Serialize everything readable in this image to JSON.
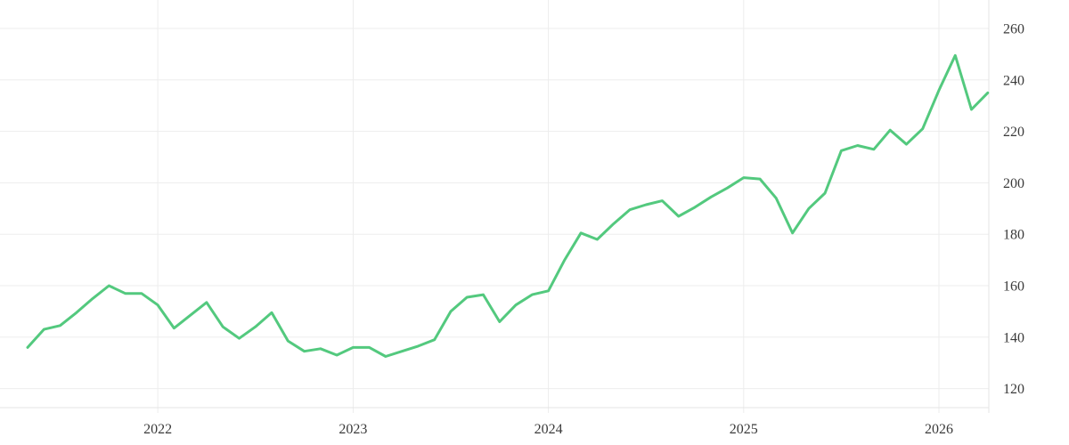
{
  "style": {
    "line_color": "#53c97e",
    "grid_color": "#ededed",
    "axis_color": "#e4e4e4",
    "tick_text_color": "#3a3a3a",
    "background_color": "#ffffff"
  },
  "chart_data": {
    "type": "line",
    "title": "",
    "xlabel": "",
    "ylabel": "",
    "grid": true,
    "legend": false,
    "y_axis_side": "right",
    "x_tick_labels": [
      "2022",
      "2023",
      "2024",
      "2025",
      "2026"
    ],
    "y_tick_labels": [
      "120",
      "140",
      "160",
      "180",
      "200",
      "220",
      "240",
      "260"
    ],
    "y_ticks": [
      120,
      140,
      160,
      180,
      200,
      220,
      240,
      260
    ],
    "ylim": [
      113,
      271
    ],
    "x": [
      "2021-05",
      "2021-06",
      "2021-07",
      "2021-08",
      "2021-09",
      "2021-10",
      "2021-11",
      "2021-12",
      "2022-01",
      "2022-02",
      "2022-03",
      "2022-04",
      "2022-05",
      "2022-06",
      "2022-07",
      "2022-08",
      "2022-09",
      "2022-10",
      "2022-11",
      "2022-12",
      "2023-01",
      "2023-02",
      "2023-03",
      "2023-04",
      "2023-05",
      "2023-06",
      "2023-07",
      "2023-08",
      "2023-09",
      "2023-10",
      "2023-11",
      "2023-12",
      "2024-01",
      "2024-02",
      "2024-03",
      "2024-04",
      "2024-05",
      "2024-06",
      "2024-07",
      "2024-08",
      "2024-09",
      "2024-10",
      "2024-11",
      "2024-12",
      "2025-01",
      "2025-02",
      "2025-03",
      "2025-04",
      "2025-05",
      "2025-06",
      "2025-07",
      "2025-08",
      "2025-09",
      "2025-10",
      "2025-11",
      "2025-12",
      "2026-01",
      "2026-02",
      "2026-03",
      "2026-04"
    ],
    "values": [
      136,
      143,
      144.5,
      149.5,
      155,
      160,
      157,
      157,
      152.5,
      143.5,
      148.5,
      153.5,
      144,
      139.5,
      144,
      149.5,
      138.5,
      134.5,
      135.5,
      133,
      136,
      136,
      132.5,
      134.5,
      136.5,
      139,
      150,
      155.5,
      156.5,
      146,
      152.5,
      156.5,
      158,
      170,
      180.5,
      178,
      184,
      189.5,
      191.5,
      193,
      187,
      190.5,
      194.5,
      198,
      202,
      201.5,
      194,
      180.5,
      190,
      196,
      212.5,
      214.5,
      213,
      220.5,
      215,
      221,
      236,
      249.5,
      228.5,
      235
    ]
  }
}
